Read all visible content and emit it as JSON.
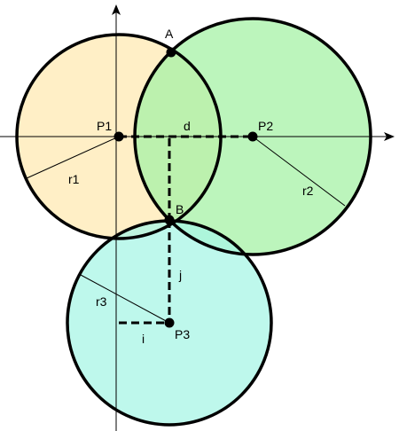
{
  "diagram": {
    "colors": {
      "circle1_fill": "#ffe9b3",
      "circle2_fill": "#a6f2a6",
      "circle3_fill": "#a8f5e6",
      "stroke": "#000000"
    },
    "labels": {
      "point_a": "A",
      "point_b": "B",
      "p1": "P1",
      "p2": "P2",
      "p3": "P3",
      "distance_d": "d",
      "radius_r1": "r1",
      "radius_r2": "r2",
      "radius_r3": "r3",
      "offset_i": "i",
      "offset_j": "j"
    }
  }
}
